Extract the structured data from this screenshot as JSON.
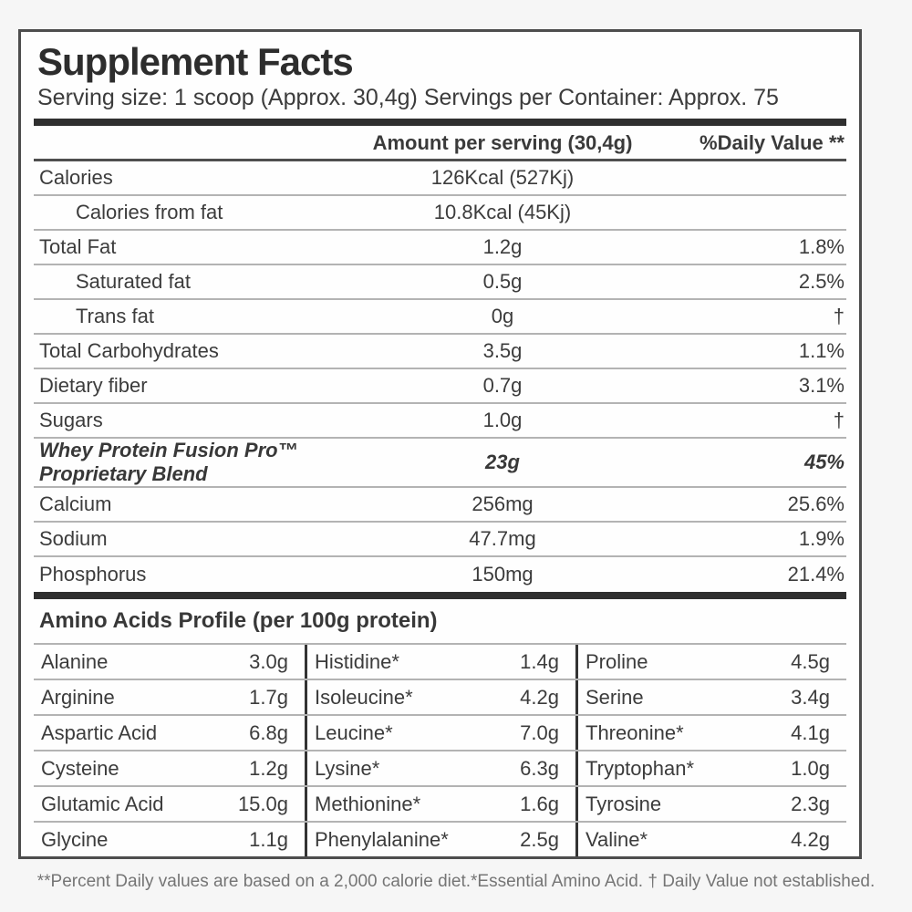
{
  "colors": {
    "ink": "#3c3c3c",
    "rule_light": "#b3b3b3",
    "rule_dark": "#2f2f2f"
  },
  "title": "Supplement Facts",
  "serving_line": "Serving size: 1 scoop (Approx. 30,4g) Servings per Container: Approx. 75",
  "header": {
    "amount": "Amount per serving (30,4g)",
    "dv": "%Daily Value **"
  },
  "rows": [
    {
      "name": "Calories",
      "amount": "126Kcal (527Kj)",
      "dv": ""
    },
    {
      "name": "Calories from fat",
      "amount": "10.8Kcal (45Kj)",
      "dv": ""
    },
    {
      "name": "Total Fat",
      "amount": "1.2g",
      "dv": "1.8%"
    },
    {
      "name": "Saturated fat",
      "amount": "0.5g",
      "dv": "2.5%"
    },
    {
      "name": "Trans fat",
      "amount": "0g",
      "dv": "†"
    },
    {
      "name": "Total Carbohydrates",
      "amount": "3.5g",
      "dv": "1.1%"
    },
    {
      "name": "Dietary fiber",
      "amount": "0.7g",
      "dv": "3.1%"
    },
    {
      "name": "Sugars",
      "amount": "1.0g",
      "dv": "†"
    },
    {
      "name": "Whey Protein Fusion Pro™ Proprietary Blend",
      "amount": "23g",
      "dv": "45%"
    },
    {
      "name": "Calcium",
      "amount": "256mg",
      "dv": "25.6%"
    },
    {
      "name": "Sodium",
      "amount": "47.7mg",
      "dv": "1.9%"
    },
    {
      "name": "Phosphorus",
      "amount": "150mg",
      "dv": "21.4%"
    }
  ],
  "amino": {
    "heading": "Amino Acids Profile (per 100g protein)",
    "rows": [
      [
        {
          "name": "Alanine",
          "value": "3.0g"
        },
        {
          "name": "Histidine*",
          "value": "1.4g"
        },
        {
          "name": "Proline",
          "value": "4.5g"
        }
      ],
      [
        {
          "name": "Arginine",
          "value": "1.7g"
        },
        {
          "name": "Isoleucine*",
          "value": "4.2g"
        },
        {
          "name": "Serine",
          "value": "3.4g"
        }
      ],
      [
        {
          "name": "Aspartic Acid",
          "value": "6.8g"
        },
        {
          "name": "Leucine*",
          "value": "7.0g"
        },
        {
          "name": "Threonine*",
          "value": "4.1g"
        }
      ],
      [
        {
          "name": "Cysteine",
          "value": "1.2g"
        },
        {
          "name": "Lysine*",
          "value": "6.3g"
        },
        {
          "name": "Tryptophan*",
          "value": "1.0g"
        }
      ],
      [
        {
          "name": "Glutamic Acid",
          "value": "15.0g"
        },
        {
          "name": "Methionine*",
          "value": "1.6g"
        },
        {
          "name": "Tyrosine",
          "value": "2.3g"
        }
      ],
      [
        {
          "name": "Glycine",
          "value": "1.1g"
        },
        {
          "name": "Phenylalanine*",
          "value": "2.5g"
        },
        {
          "name": "Valine*",
          "value": "4.2g"
        }
      ]
    ]
  },
  "footnote": "**Percent Daily values are based on a 2,000 calorie diet.*Essential Amino Acid. † Daily Value not established."
}
